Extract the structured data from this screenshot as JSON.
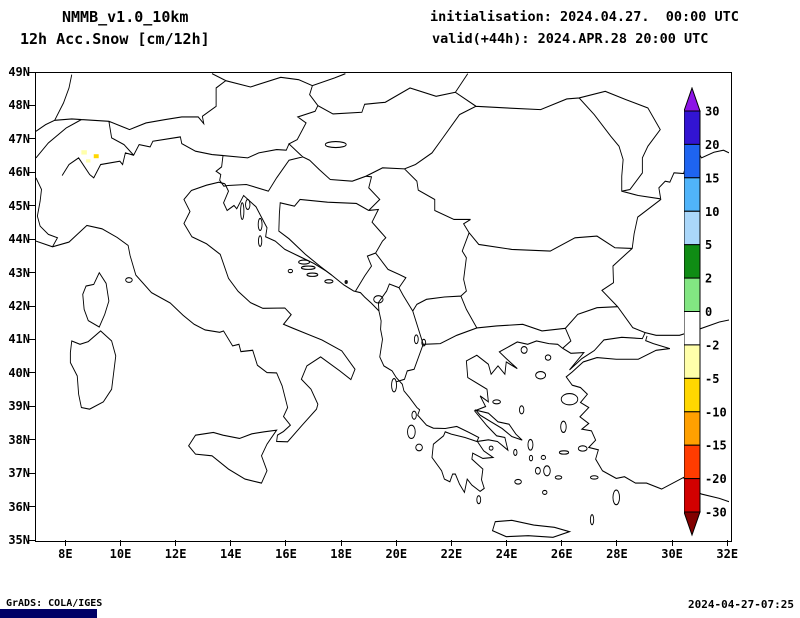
{
  "header": {
    "line1": "NMMB_v1.0_10km",
    "line2": "12h Acc.Snow [cm/12h]",
    "init_line": "initialisation: 2024.04.27.  00:00 UTC",
    "valid_line": "valid(+44h): 2024.APR.28 20:00 UTC"
  },
  "axes": {
    "lat_labels": [
      "49N",
      "48N",
      "47N",
      "46N",
      "45N",
      "44N",
      "43N",
      "42N",
      "41N",
      "40N",
      "39N",
      "38N",
      "37N",
      "36N",
      "35N"
    ],
    "lon_labels": [
      "8E",
      "10E",
      "12E",
      "14E",
      "16E",
      "18E",
      "20E",
      "22E",
      "24E",
      "26E",
      "28E",
      "30E",
      "32E"
    ]
  },
  "colorbar": {
    "labels": [
      "30",
      "20",
      "15",
      "10",
      "5",
      "2",
      "0",
      "-2",
      "-5",
      "-10",
      "-15",
      "-20",
      "-30"
    ],
    "colors": [
      "#8c14e6",
      "#3214d2",
      "#1e64f0",
      "#50b4fa",
      "#aad7fa",
      "#0f8c14",
      "#82e682",
      "#ffffff",
      "#ffffaa",
      "#ffd700",
      "#ffa000",
      "#ff3c00",
      "#d20000",
      "#820000"
    ]
  },
  "footer": {
    "credit": "GrADS: COLA/IGES",
    "timestamp": "2024-04-27-07:25",
    "logo_color": "#000066"
  },
  "chart_data": {
    "type": "map",
    "title": "12h Acc.Snow [cm/12h]",
    "model": "NMMB_v1.0_10km",
    "initialisation": "2024.04.27. 00:00 UTC",
    "valid": "2024.APR.28 20:00 UTC",
    "forecast_hour": "+44h",
    "region": "Balkans / Italy / Greece / western Turkey",
    "lon_range_deg_east": [
      7,
      32
    ],
    "lat_range_deg_north": [
      35,
      49
    ],
    "lon_ticks": [
      8,
      10,
      12,
      14,
      16,
      18,
      20,
      22,
      24,
      26,
      28,
      30,
      32
    ],
    "lat_ticks": [
      49,
      48,
      47,
      46,
      45,
      44,
      43,
      42,
      41,
      40,
      39,
      38,
      37,
      36,
      35
    ],
    "colorbar_levels_cm": [
      30,
      20,
      15,
      10,
      5,
      2,
      0,
      -2,
      -5,
      -10,
      -15,
      -20,
      -30
    ],
    "legend_position": "right",
    "grid": false,
    "snow_spots": [
      {
        "lon": 8.65,
        "lat": 46.6,
        "color": "#ffffaa"
      },
      {
        "lon": 9.1,
        "lat": 46.5,
        "color": "#ffd700"
      },
      {
        "lon": 8.8,
        "lat": 46.35,
        "color": "#ffffaa"
      },
      {
        "lon": 18.18,
        "lat": 42.72,
        "color": "#141414"
      }
    ]
  }
}
